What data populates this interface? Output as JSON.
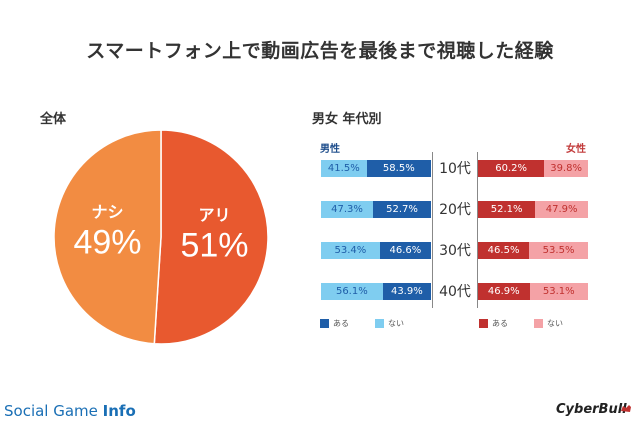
{
  "title": "スマートフォン上で動画広告を最後まで視聴した経験",
  "overall": {
    "label": "全体",
    "chart_ref": "pie"
  },
  "by_group": {
    "label": "男女 年代別",
    "male_label": "男性",
    "female_label": "女性",
    "legend_male": [
      "ある",
      "ない"
    ],
    "legend_female": [
      "ある",
      "ない"
    ]
  },
  "colors": {
    "pie_yes": "#e8592f",
    "pie_no": "#f28c42",
    "male_yes": "#1f5ea8",
    "male_no": "#7fcdf0",
    "female_yes": "#c0312f",
    "female_no": "#f4a2a6"
  },
  "chart_data": [
    {
      "type": "pie",
      "slices": [
        {
          "label": "アリ",
          "value": 51,
          "value_text": "51%"
        },
        {
          "label": "ナシ",
          "value": 49,
          "value_text": "49%"
        }
      ]
    },
    {
      "type": "bar",
      "orientation": "horizontal",
      "stacked": true,
      "group": "男性",
      "categories": [
        "10代",
        "20代",
        "30代",
        "40代"
      ],
      "series": [
        {
          "name": "ある",
          "values": [
            58.5,
            52.7,
            46.6,
            43.9
          ],
          "labels": [
            "58.5%",
            "52.7%",
            "46.6%",
            "43.9%"
          ]
        },
        {
          "name": "ない",
          "values": [
            41.5,
            47.3,
            53.4,
            56.1
          ],
          "labels": [
            "41.5%",
            "47.3%",
            "53.4%",
            "56.1%"
          ]
        }
      ]
    },
    {
      "type": "bar",
      "orientation": "horizontal",
      "stacked": true,
      "group": "女性",
      "categories": [
        "10代",
        "20代",
        "30代",
        "40代"
      ],
      "series": [
        {
          "name": "ある",
          "values": [
            60.2,
            52.1,
            46.5,
            46.9
          ],
          "labels": [
            "60.2%",
            "52.1%",
            "46.5%",
            "46.9%"
          ]
        },
        {
          "name": "ない",
          "values": [
            39.8,
            47.9,
            53.5,
            53.1
          ],
          "labels": [
            "39.8%",
            "47.9%",
            "53.5%",
            "53.1%"
          ]
        }
      ]
    }
  ],
  "footer": {
    "left_logo_a": "Social Game ",
    "left_logo_b": "Info",
    "right_logo": "CyberBull"
  }
}
